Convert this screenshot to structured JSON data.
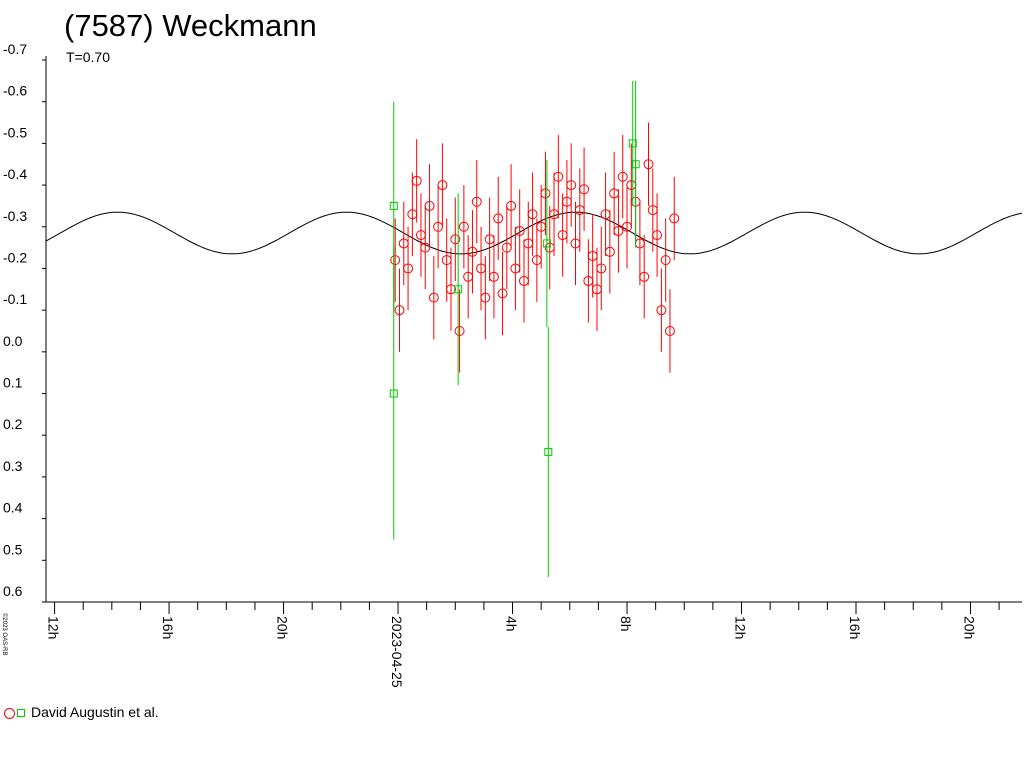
{
  "title": "(7587) Weckmann",
  "subtitle": "T=0.70",
  "copyright": "©2023 OAS-RB",
  "legend": {
    "label": "David Augustin et al."
  },
  "colors": {
    "series_red": "#ff0000",
    "series_green": "#00cc00",
    "model": "#000000",
    "axis": "#000000"
  },
  "chart_data": {
    "type": "scatter",
    "title": "(7587) Weckmann",
    "subtitle": "T=0.70",
    "y_axis": {
      "ticks": [
        "-0.7",
        "-0.6",
        "-0.5",
        "-0.4",
        "-0.3",
        "-0.2",
        "-0.1",
        "0.0",
        "0.1",
        "0.2",
        "0.3",
        "0.4",
        "0.5",
        "0.6"
      ],
      "range": [
        -0.7,
        0.6
      ],
      "inverted": true
    },
    "x_axis": {
      "unit": "hours relative to 2023-04-25 00:00",
      "range": [
        -12.3,
        21.8
      ],
      "tick_labels": [
        "12h",
        "16h",
        "20h",
        "2023-04-25",
        "4h",
        "8h",
        "12h",
        "16h",
        "20h"
      ],
      "tick_values": [
        -12,
        -8,
        -4,
        0,
        4,
        8,
        12,
        16,
        20
      ]
    },
    "model_curve": {
      "mean": -0.285,
      "amplitude": 0.05,
      "period_hours": 8.0,
      "peak_hour": -9.8
    },
    "series": [
      {
        "name": "David Augustin et al.",
        "marker": "circle",
        "color": "#ff0000",
        "points": [
          {
            "x": -0.1,
            "y": -0.22,
            "err": 0.1
          },
          {
            "x": 0.05,
            "y": -0.1,
            "err": 0.1
          },
          {
            "x": 0.2,
            "y": -0.26,
            "err": 0.1
          },
          {
            "x": 0.35,
            "y": -0.2,
            "err": 0.1
          },
          {
            "x": 0.5,
            "y": -0.33,
            "err": 0.1
          },
          {
            "x": 0.65,
            "y": -0.41,
            "err": 0.1
          },
          {
            "x": 0.8,
            "y": -0.28,
            "err": 0.1
          },
          {
            "x": 0.95,
            "y": -0.25,
            "err": 0.1
          },
          {
            "x": 1.1,
            "y": -0.35,
            "err": 0.1
          },
          {
            "x": 1.25,
            "y": -0.13,
            "err": 0.1
          },
          {
            "x": 1.4,
            "y": -0.3,
            "err": 0.1
          },
          {
            "x": 1.55,
            "y": -0.4,
            "err": 0.1
          },
          {
            "x": 1.7,
            "y": -0.22,
            "err": 0.1
          },
          {
            "x": 1.85,
            "y": -0.15,
            "err": 0.1
          },
          {
            "x": 2.0,
            "y": -0.27,
            "err": 0.1
          },
          {
            "x": 2.15,
            "y": -0.05,
            "err": 0.1
          },
          {
            "x": 2.3,
            "y": -0.3,
            "err": 0.1
          },
          {
            "x": 2.45,
            "y": -0.18,
            "err": 0.1
          },
          {
            "x": 2.6,
            "y": -0.24,
            "err": 0.1
          },
          {
            "x": 2.75,
            "y": -0.36,
            "err": 0.1
          },
          {
            "x": 2.9,
            "y": -0.2,
            "err": 0.1
          },
          {
            "x": 3.05,
            "y": -0.13,
            "err": 0.1
          },
          {
            "x": 3.2,
            "y": -0.27,
            "err": 0.1
          },
          {
            "x": 3.35,
            "y": -0.18,
            "err": 0.1
          },
          {
            "x": 3.5,
            "y": -0.32,
            "err": 0.1
          },
          {
            "x": 3.65,
            "y": -0.14,
            "err": 0.1
          },
          {
            "x": 3.8,
            "y": -0.25,
            "err": 0.1
          },
          {
            "x": 3.95,
            "y": -0.35,
            "err": 0.1
          },
          {
            "x": 4.1,
            "y": -0.2,
            "err": 0.1
          },
          {
            "x": 4.25,
            "y": -0.29,
            "err": 0.1
          },
          {
            "x": 4.4,
            "y": -0.17,
            "err": 0.1
          },
          {
            "x": 4.55,
            "y": -0.26,
            "err": 0.1
          },
          {
            "x": 4.7,
            "y": -0.33,
            "err": 0.1
          },
          {
            "x": 4.85,
            "y": -0.22,
            "err": 0.1
          },
          {
            "x": 5.0,
            "y": -0.3,
            "err": 0.1
          },
          {
            "x": 5.15,
            "y": -0.38,
            "err": 0.1
          },
          {
            "x": 5.3,
            "y": -0.25,
            "err": 0.1
          },
          {
            "x": 5.45,
            "y": -0.33,
            "err": 0.1
          },
          {
            "x": 5.6,
            "y": -0.42,
            "err": 0.1
          },
          {
            "x": 5.75,
            "y": -0.28,
            "err": 0.1
          },
          {
            "x": 5.9,
            "y": -0.36,
            "err": 0.1
          },
          {
            "x": 6.05,
            "y": -0.4,
            "err": 0.1
          },
          {
            "x": 6.2,
            "y": -0.26,
            "err": 0.1
          },
          {
            "x": 6.35,
            "y": -0.34,
            "err": 0.1
          },
          {
            "x": 6.5,
            "y": -0.39,
            "err": 0.1
          },
          {
            "x": 6.65,
            "y": -0.17,
            "err": 0.1
          },
          {
            "x": 6.8,
            "y": -0.23,
            "err": 0.1
          },
          {
            "x": 6.95,
            "y": -0.15,
            "err": 0.1
          },
          {
            "x": 7.1,
            "y": -0.2,
            "err": 0.1
          },
          {
            "x": 7.25,
            "y": -0.33,
            "err": 0.1
          },
          {
            "x": 7.4,
            "y": -0.24,
            "err": 0.1
          },
          {
            "x": 7.55,
            "y": -0.38,
            "err": 0.1
          },
          {
            "x": 7.7,
            "y": -0.29,
            "err": 0.1
          },
          {
            "x": 7.85,
            "y": -0.42,
            "err": 0.1
          },
          {
            "x": 8.0,
            "y": -0.3,
            "err": 0.1
          },
          {
            "x": 8.15,
            "y": -0.4,
            "err": 0.1
          },
          {
            "x": 8.3,
            "y": -0.36,
            "err": 0.1
          },
          {
            "x": 8.45,
            "y": -0.26,
            "err": 0.1
          },
          {
            "x": 8.6,
            "y": -0.18,
            "err": 0.1
          },
          {
            "x": 8.75,
            "y": -0.45,
            "err": 0.1
          },
          {
            "x": 8.9,
            "y": -0.34,
            "err": 0.1
          },
          {
            "x": 9.05,
            "y": -0.28,
            "err": 0.1
          },
          {
            "x": 9.2,
            "y": -0.1,
            "err": 0.1
          },
          {
            "x": 9.35,
            "y": -0.22,
            "err": 0.1
          },
          {
            "x": 9.5,
            "y": -0.05,
            "err": 0.1
          },
          {
            "x": 9.65,
            "y": -0.32,
            "err": 0.1
          }
        ]
      },
      {
        "name": "",
        "marker": "square",
        "color": "#00cc00",
        "points": [
          {
            "x": -0.15,
            "y": -0.35,
            "err": 0.25
          },
          {
            "x": -0.15,
            "y": 0.1,
            "err": 0.35
          },
          {
            "x": 2.1,
            "y": -0.15,
            "err": 0.23
          },
          {
            "x": 5.2,
            "y": -0.26,
            "err": 0.2
          },
          {
            "x": 5.25,
            "y": 0.24,
            "err": 0.3
          },
          {
            "x": 8.2,
            "y": -0.5,
            "err": 0.15
          },
          {
            "x": 8.3,
            "y": -0.45,
            "err": 0.2
          }
        ]
      }
    ]
  }
}
